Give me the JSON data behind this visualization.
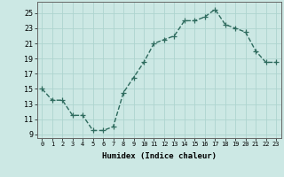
{
  "x": [
    0,
    1,
    2,
    3,
    4,
    5,
    6,
    7,
    8,
    9,
    10,
    11,
    12,
    13,
    14,
    15,
    16,
    17,
    18,
    19,
    20,
    21,
    22,
    23
  ],
  "y": [
    15,
    13.5,
    13.5,
    11.5,
    11.5,
    9.5,
    9.5,
    10,
    14.5,
    16.5,
    18.5,
    21,
    21.5,
    22,
    24,
    24,
    24.5,
    25.5,
    23.5,
    23,
    22.5,
    20,
    18.5,
    18.5
  ],
  "line_color": "#2e6b5e",
  "bg_color": "#cce8e4",
  "grid_color": "#aed4cf",
  "xlabel": "Humidex (Indice chaleur)",
  "xlim": [
    -0.5,
    23.5
  ],
  "ylim": [
    8.5,
    26.5
  ],
  "yticks": [
    9,
    11,
    13,
    15,
    17,
    19,
    21,
    23,
    25
  ],
  "xticks": [
    0,
    1,
    2,
    3,
    4,
    5,
    6,
    7,
    8,
    9,
    10,
    11,
    12,
    13,
    14,
    15,
    16,
    17,
    18,
    19,
    20,
    21,
    22,
    23
  ],
  "marker": "+",
  "markersize": 4,
  "linewidth": 1.0
}
